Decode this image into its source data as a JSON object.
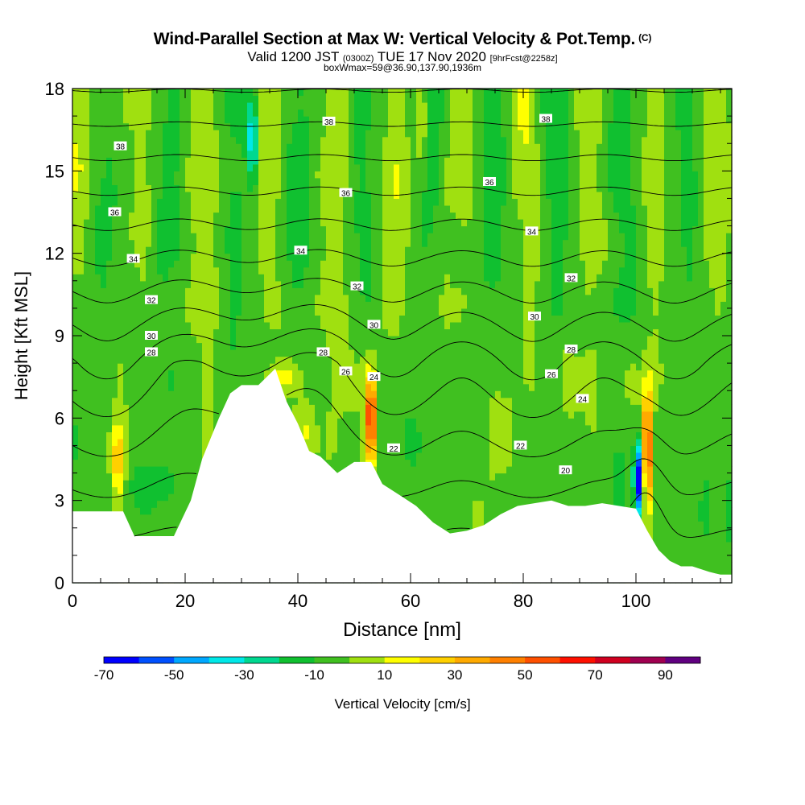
{
  "title": {
    "main": "Wind-Parallel Section at Max W: Vertical Velocity & Pot.Temp.",
    "copyright": "(C)",
    "valid_prefix": "Valid 1200 JST",
    "valid_utc": "(0300Z)",
    "valid_suffix": "TUE 17 Nov 2020",
    "forecast": "[9hrFcst@2258z]",
    "box": "boxWmax=59@36.90,137.90,1936m"
  },
  "chart_data": {
    "type": "heatmap",
    "xlabel": "Distance [nm]",
    "ylabel": "Height [Kft MSL]",
    "xlim": [
      0,
      117
    ],
    "ylim": [
      0,
      18
    ],
    "xticks": [
      0,
      20,
      40,
      60,
      80,
      100
    ],
    "yticks": [
      0,
      3,
      6,
      9,
      12,
      15,
      18
    ],
    "terrain": {
      "x": [
        0,
        9,
        11,
        18,
        21,
        23,
        26,
        28,
        30,
        33,
        36,
        38,
        40,
        42,
        44,
        47,
        50,
        53,
        55,
        58,
        61,
        64,
        67,
        70,
        73,
        76,
        79,
        82,
        85,
        88,
        91,
        94,
        97,
        100,
        102,
        104,
        106,
        108,
        110,
        113,
        115,
        117
      ],
      "height": [
        2.6,
        2.6,
        1.7,
        1.7,
        3.0,
        4.5,
        6.0,
        6.9,
        7.2,
        7.2,
        7.8,
        6.6,
        5.8,
        4.8,
        4.6,
        4.0,
        4.4,
        4.4,
        3.6,
        3.2,
        2.8,
        2.2,
        1.8,
        1.9,
        2.1,
        2.5,
        2.8,
        2.9,
        3.0,
        2.8,
        2.8,
        2.9,
        2.8,
        2.7,
        1.9,
        1.2,
        0.8,
        0.6,
        0.6,
        0.4,
        0.3,
        0.3
      ]
    },
    "vertical_velocity_colorbar": {
      "label": "Vertical Velocity [cm/s]",
      "units": "cm/s",
      "tick_labels": [
        "-70",
        "-50",
        "-30",
        "-10",
        "10",
        "30",
        "50",
        "70",
        "90"
      ],
      "colors": [
        "#0000ff",
        "#0050ff",
        "#00a8ff",
        "#00e8e8",
        "#00d890",
        "#10c030",
        "#40c020",
        "#a0e010",
        "#ffff00",
        "#ffd000",
        "#ffaa00",
        "#ff8000",
        "#ff5000",
        "#ff1000",
        "#d00020",
        "#a00050",
        "#600080"
      ]
    },
    "updraft_max_cm_s": 59,
    "potential_temperature_labels": [
      {
        "text": "38",
        "x": 8.5,
        "y": 15.9
      },
      {
        "text": "38",
        "x": 45.5,
        "y": 16.8
      },
      {
        "text": "38",
        "x": 84,
        "y": 16.9
      },
      {
        "text": "36",
        "x": 7.5,
        "y": 13.5
      },
      {
        "text": "36",
        "x": 48.5,
        "y": 14.2
      },
      {
        "text": "36",
        "x": 74,
        "y": 14.6
      },
      {
        "text": "34",
        "x": 10.8,
        "y": 11.8
      },
      {
        "text": "34",
        "x": 40.5,
        "y": 12.1
      },
      {
        "text": "34",
        "x": 81.5,
        "y": 12.8
      },
      {
        "text": "32",
        "x": 14,
        "y": 10.3
      },
      {
        "text": "32",
        "x": 50.5,
        "y": 10.8
      },
      {
        "text": "32",
        "x": 88.5,
        "y": 11.1
      },
      {
        "text": "30",
        "x": 14,
        "y": 9.0
      },
      {
        "text": "30",
        "x": 53.5,
        "y": 9.4
      },
      {
        "text": "30",
        "x": 82,
        "y": 9.7
      },
      {
        "text": "28",
        "x": 14,
        "y": 8.4
      },
      {
        "text": "28",
        "x": 44.5,
        "y": 8.4
      },
      {
        "text": "28",
        "x": 88.5,
        "y": 8.5
      },
      {
        "text": "26",
        "x": 48.5,
        "y": 7.7
      },
      {
        "text": "26",
        "x": 85,
        "y": 7.6
      },
      {
        "text": "24",
        "x": 53.5,
        "y": 7.5
      },
      {
        "text": "24",
        "x": 90.5,
        "y": 6.7
      },
      {
        "text": "22",
        "x": 57,
        "y": 4.9
      },
      {
        "text": "22",
        "x": 79.5,
        "y": 5.0
      },
      {
        "text": "20",
        "x": 87.5,
        "y": 4.1
      }
    ],
    "features": [
      {
        "kind": "updraft",
        "x": 53,
        "y_range": [
          4.5,
          7.5
        ],
        "value": 70
      },
      {
        "kind": "updraft",
        "x": 102,
        "y_range": [
          2.8,
          7.0
        ],
        "value": 70
      },
      {
        "kind": "downdraft",
        "x": 100.5,
        "y_range": [
          2.5,
          5.0
        ],
        "value": -70
      },
      {
        "kind": "downdraft",
        "x": 32,
        "y_range": [
          14.5,
          18
        ],
        "value": -40
      }
    ]
  }
}
